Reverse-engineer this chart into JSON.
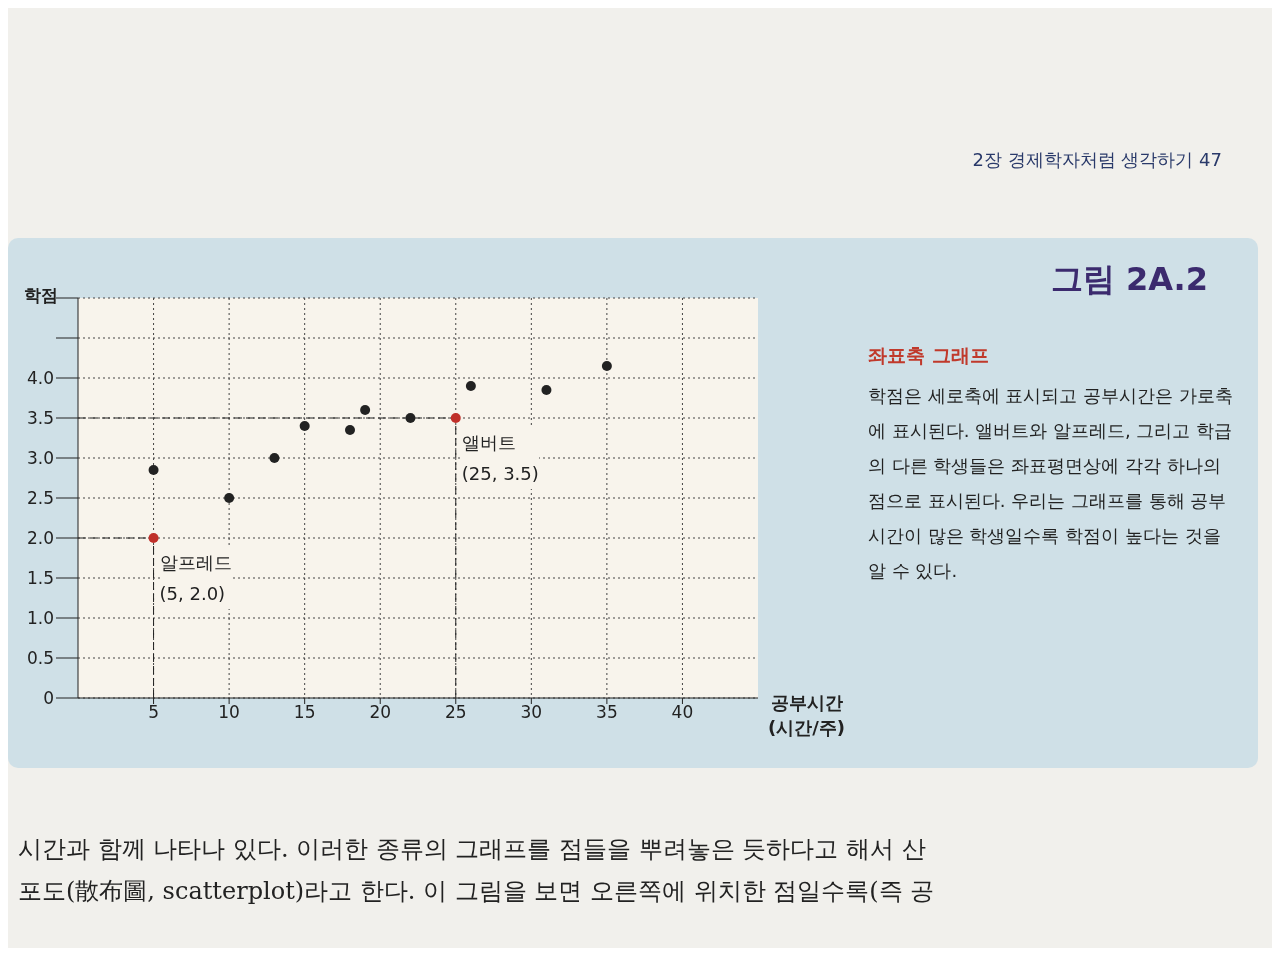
{
  "chart_data": {
    "type": "scatter",
    "title": "그림 2A.2",
    "subtitle": "좌표축 그래프",
    "ylabel": "학점",
    "xlabel": "공부시간\n(시간/주)",
    "x": [
      5,
      5,
      10,
      13,
      15,
      18,
      19,
      22,
      25,
      26,
      31,
      35
    ],
    "values": [
      2.85,
      2.0,
      2.5,
      3.0,
      3.4,
      3.35,
      3.6,
      3.5,
      3.5,
      3.9,
      3.85,
      4.15
    ],
    "colors": [
      "#222222",
      "#c0302a",
      "#222222",
      "#222222",
      "#222222",
      "#222222",
      "#222222",
      "#222222",
      "#c0302a",
      "#222222",
      "#222222",
      "#222222"
    ],
    "xlim": [
      0,
      45
    ],
    "xticks": [
      5,
      10,
      15,
      20,
      25,
      30,
      35,
      40
    ],
    "ylim": [
      0,
      5
    ],
    "yticks": [
      {
        "value": 0,
        "label": "0"
      },
      {
        "value": 0.5,
        "label": "0.5"
      },
      {
        "value": 1,
        "label": "1.0"
      },
      {
        "value": 1.5,
        "label": "1.5"
      },
      {
        "value": 2,
        "label": "2.0"
      },
      {
        "value": 2.5,
        "label": "2.5"
      },
      {
        "value": 3,
        "label": "3.0"
      },
      {
        "value": 3.5,
        "label": "3.5"
      },
      {
        "value": 4,
        "label": "4.0"
      },
      {
        "value": 4.5,
        "label": null
      },
      {
        "value": 5,
        "label": null
      }
    ],
    "grid": true,
    "marker": "circle",
    "annotations": [
      "2장 경제학자처럼 생각하기 47",
      "학점은 세로축에 표시되고 공부시간은 가로축에 표시된다. 앨버트와 알프레드, 그리고 학급의 다른 학생들은 좌표평면상에 각각 하나의 점으로 표시된다. 우리는 그래프를 통해 공부시간이 많은 학생일수록 학점이 높다는 것을 알 수 있다.",
      "시간과 함께 나타나 있다. 이러한 종류의 그래프를 점들을 뿌려놓은 듯하다고 해서 산",
      "포도(散布圖, scatterplot)라고 한다. 이 그림을 보면 오른쪽에 위치한 점일수록(즉 공",
      {
        "text": "알프레드\n(5, 2.0)",
        "x": 5,
        "y": 2.0
      },
      {
        "text": "앨버트\n(25, 3.5)",
        "x": 25,
        "y": 3.5
      }
    ]
  }
}
